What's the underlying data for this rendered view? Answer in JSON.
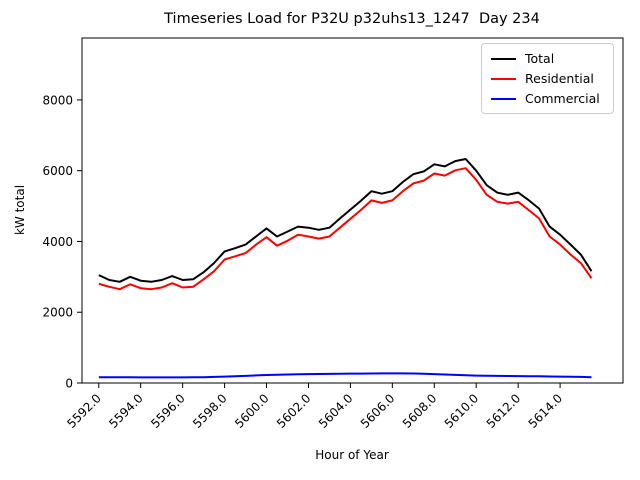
{
  "chart_data": {
    "type": "line",
    "title": "Timeseries Load for P32U p32uhs13_1247  Day 234",
    "xlabel": "Hour of Year",
    "ylabel": "kW total",
    "grid": false,
    "legend_position": "upper right",
    "xlim": [
      5591.2,
      5617.0
    ],
    "ylim": [
      0,
      9750
    ],
    "xticks": [
      {
        "v": 5592,
        "label": "5592.0"
      },
      {
        "v": 5594,
        "label": "5594.0"
      },
      {
        "v": 5596,
        "label": "5596.0"
      },
      {
        "v": 5598,
        "label": "5598.0"
      },
      {
        "v": 5600,
        "label": "5600.0"
      },
      {
        "v": 5602,
        "label": "5602.0"
      },
      {
        "v": 5604,
        "label": "5604.0"
      },
      {
        "v": 5606,
        "label": "5606.0"
      },
      {
        "v": 5608,
        "label": "5608.0"
      },
      {
        "v": 5610,
        "label": "5610.0"
      },
      {
        "v": 5612,
        "label": "5612.0"
      },
      {
        "v": 5614,
        "label": "5614.0"
      }
    ],
    "yticks": [
      {
        "v": 0,
        "label": "0"
      },
      {
        "v": 2000,
        "label": "2000"
      },
      {
        "v": 4000,
        "label": "4000"
      },
      {
        "v": 6000,
        "label": "6000"
      },
      {
        "v": 8000,
        "label": "8000"
      }
    ],
    "x": [
      5592.0,
      5592.5,
      5593.0,
      5593.5,
      5594.0,
      5594.5,
      5595.0,
      5595.5,
      5596.0,
      5596.5,
      5597.0,
      5597.5,
      5598.0,
      5598.5,
      5599.0,
      5599.5,
      5600.0,
      5600.5,
      5601.0,
      5601.5,
      5602.0,
      5602.5,
      5603.0,
      5603.5,
      5604.0,
      5604.5,
      5605.0,
      5605.5,
      5606.0,
      5606.5,
      5607.0,
      5607.5,
      5608.0,
      5608.5,
      5609.0,
      5609.5,
      5610.0,
      5610.5,
      5611.0,
      5611.5,
      5612.0,
      5612.5,
      5613.0,
      5613.5,
      5614.0,
      5614.5,
      5615.0,
      5615.5
    ],
    "series": [
      {
        "name": "Total",
        "color": "#000000",
        "values": [
          3050,
          2910,
          2860,
          3000,
          2890,
          2860,
          2910,
          3020,
          2910,
          2930,
          3130,
          3390,
          3720,
          3810,
          3910,
          4140,
          4370,
          4140,
          4280,
          4420,
          4390,
          4330,
          4390,
          4650,
          4900,
          5150,
          5420,
          5350,
          5420,
          5680,
          5900,
          5980,
          6180,
          6120,
          6270,
          6330,
          6000,
          5590,
          5380,
          5320,
          5380,
          5170,
          4930,
          4420,
          4190,
          3910,
          3620,
          3160
        ]
      },
      {
        "name": "Residential",
        "color": "#ff0000",
        "values": [
          2800,
          2720,
          2650,
          2790,
          2680,
          2650,
          2700,
          2820,
          2700,
          2720,
          2930,
          3160,
          3490,
          3580,
          3670,
          3910,
          4120,
          3880,
          4020,
          4190,
          4140,
          4080,
          4140,
          4390,
          4640,
          4890,
          5160,
          5090,
          5160,
          5420,
          5640,
          5720,
          5920,
          5860,
          6010,
          6070,
          5740,
          5320,
          5120,
          5070,
          5120,
          4890,
          4650,
          4140,
          3910,
          3630,
          3380,
          2960
        ]
      },
      {
        "name": "Commercial",
        "color": "#0000ff",
        "values": [
          165,
          163,
          161,
          160,
          158,
          157,
          157,
          158,
          158,
          160,
          165,
          172,
          182,
          192,
          202,
          214,
          225,
          233,
          240,
          246,
          251,
          255,
          258,
          262,
          265,
          267,
          269,
          270,
          270,
          270,
          268,
          262,
          252,
          240,
          228,
          218,
          210,
          204,
          200,
          197,
          194,
          191,
          188,
          185,
          182,
          179,
          172,
          163
        ]
      }
    ]
  }
}
